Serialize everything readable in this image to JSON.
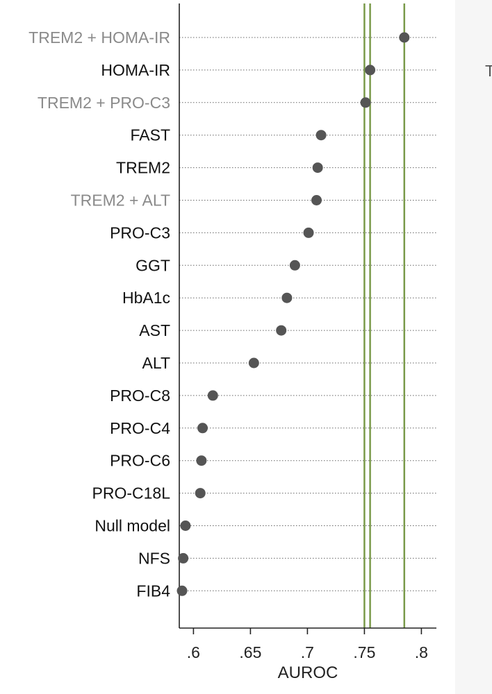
{
  "chart_data": {
    "type": "scatter",
    "xlabel": "AUROC",
    "xlim": [
      0.59,
      0.82
    ],
    "xticks": [
      {
        "value": 0.6,
        "label": ".6"
      },
      {
        "value": 0.65,
        "label": ".65"
      },
      {
        "value": 0.7,
        "label": ".7"
      },
      {
        "value": 0.75,
        "label": ".75"
      },
      {
        "value": 0.8,
        "label": ".8"
      }
    ],
    "reference_lines": [
      0.75,
      0.755,
      0.785
    ],
    "grid": "dotted-horizontal",
    "points": [
      {
        "label": "TREM2 + HOMA-IR",
        "value": 0.785,
        "label_color": "#8a8a8a"
      },
      {
        "label": "HOMA-IR",
        "value": 0.755,
        "label_color": "#111111"
      },
      {
        "label": "TREM2 + PRO-C3",
        "value": 0.751,
        "label_color": "#8a8a8a"
      },
      {
        "label": "FAST",
        "value": 0.712,
        "label_color": "#111111"
      },
      {
        "label": "TREM2",
        "value": 0.709,
        "label_color": "#111111"
      },
      {
        "label": "TREM2 + ALT",
        "value": 0.708,
        "label_color": "#8a8a8a"
      },
      {
        "label": "PRO-C3",
        "value": 0.701,
        "label_color": "#111111"
      },
      {
        "label": "GGT",
        "value": 0.689,
        "label_color": "#111111"
      },
      {
        "label": "HbA1c",
        "value": 0.682,
        "label_color": "#111111"
      },
      {
        "label": "AST",
        "value": 0.677,
        "label_color": "#111111"
      },
      {
        "label": "ALT",
        "value": 0.653,
        "label_color": "#111111"
      },
      {
        "label": "PRO-C8",
        "value": 0.617,
        "label_color": "#111111"
      },
      {
        "label": "PRO-C4",
        "value": 0.608,
        "label_color": "#111111"
      },
      {
        "label": "PRO-C6",
        "value": 0.607,
        "label_color": "#111111"
      },
      {
        "label": "PRO-C18L",
        "value": 0.606,
        "label_color": "#111111"
      },
      {
        "label": "Null model",
        "value": 0.593,
        "label_color": "#111111"
      },
      {
        "label": "NFS",
        "value": 0.591,
        "label_color": "#111111"
      },
      {
        "label": "FIB4",
        "value": 0.59,
        "label_color": "#111111"
      }
    ],
    "colors": {
      "marker": "#555555",
      "reference_line": "#7a9a4a",
      "axis": "#222222",
      "grid": "#666666"
    }
  },
  "clipped_text": "T"
}
